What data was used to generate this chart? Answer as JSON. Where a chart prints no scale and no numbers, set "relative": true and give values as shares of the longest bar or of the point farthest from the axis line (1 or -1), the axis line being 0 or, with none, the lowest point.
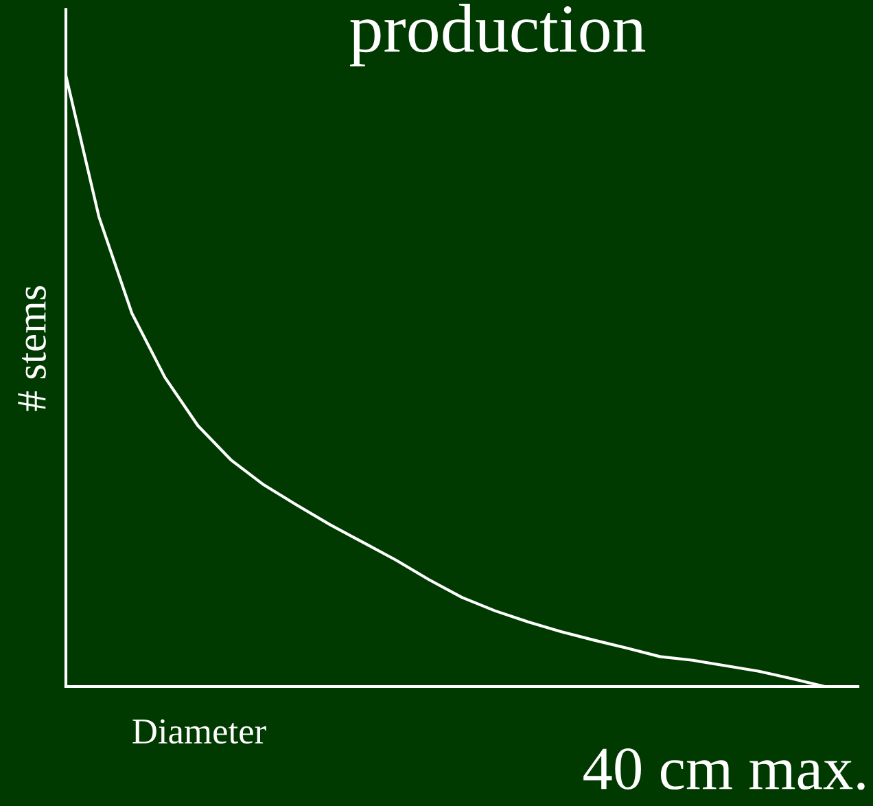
{
  "chart_data": {
    "type": "line",
    "title": "production",
    "ylabel": "# stems",
    "xlabel": "Diameter",
    "annotations": [
      "40 cm max."
    ],
    "relative": true,
    "categories": [
      null,
      null,
      null,
      null,
      null,
      null,
      null,
      null,
      null,
      null,
      null,
      null,
      null,
      null,
      null,
      null,
      null,
      null,
      null,
      null,
      null,
      null,
      null,
      null,
      null
    ],
    "series": [
      {
        "color": "#ffffff",
        "values": [
          1.0,
          0.769,
          0.611,
          0.506,
          0.427,
          0.371,
          0.33,
          0.297,
          0.265,
          0.236,
          0.207,
          0.175,
          0.146,
          0.124,
          0.106,
          0.09,
          0.076,
          0.063,
          0.049,
          0.043,
          0.034,
          0.025,
          0.013,
          0.0,
          null
        ]
      }
    ],
    "grid": false,
    "legend": false,
    "marker": "none",
    "line_style": "solid"
  }
}
